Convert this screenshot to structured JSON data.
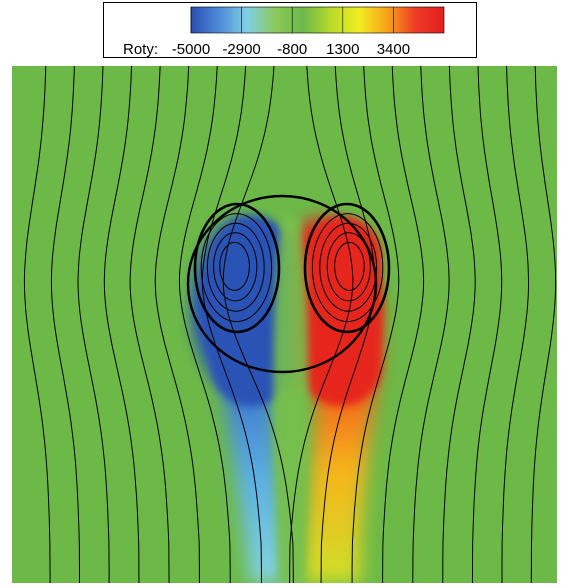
{
  "chart_data": {
    "type": "heatmap",
    "title": "",
    "legend": {
      "variable": "Roty:",
      "tick_labels": [
        "-5000",
        "-2900",
        "-800",
        "1300",
        "3400"
      ],
      "ticks": [
        -5000,
        -2900,
        -800,
        1300,
        3400
      ],
      "range": [
        -5000,
        5500
      ],
      "placement": "top-center"
    },
    "colormap": [
      "#2a4fb3",
      "#4f8ad8",
      "#7fd0e6",
      "#8cc85a",
      "#6db84a",
      "#b9dc2a",
      "#f2ec20",
      "#f7a019",
      "#ee3a26",
      "#e31f1f"
    ],
    "background_value": 0,
    "field_features": [
      {
        "name": "negative-vortex",
        "peak": -5000,
        "side": "left"
      },
      {
        "name": "positive-vortex",
        "peak": 5000,
        "side": "right"
      },
      {
        "name": "negative-wake",
        "peak": -2600,
        "side": "left"
      },
      {
        "name": "positive-wake",
        "peak": 2200,
        "side": "right"
      }
    ],
    "streamlines": {
      "far_field_count": 18,
      "closed_loops_per_vortex": 5
    },
    "boundary": {
      "shape": "circle"
    },
    "grid": false
  }
}
